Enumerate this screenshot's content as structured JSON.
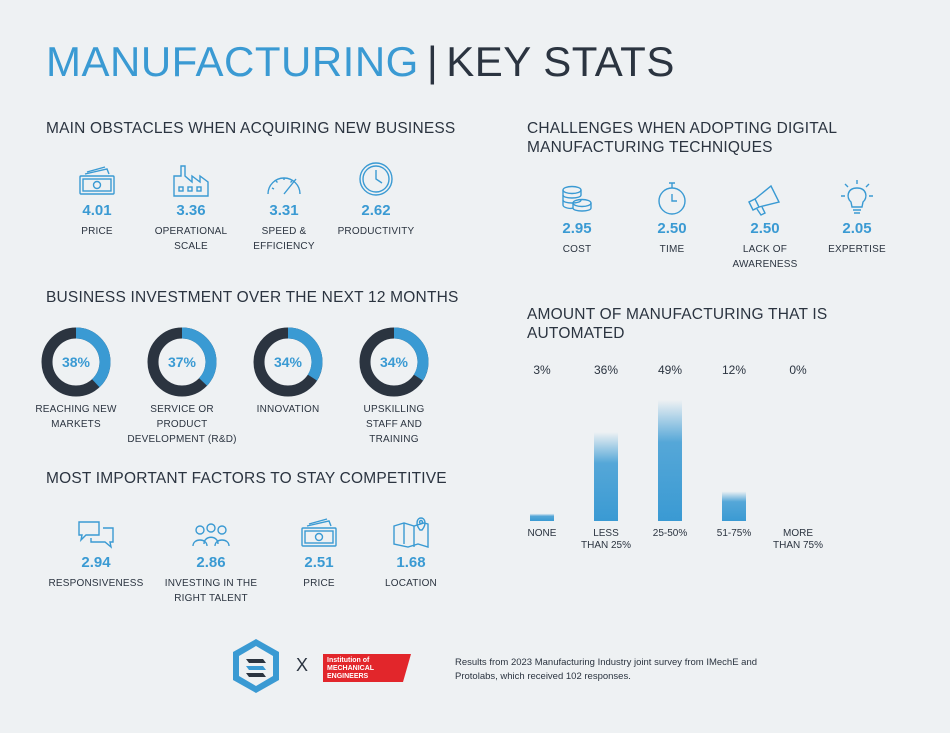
{
  "title": {
    "accent": "MANUFACTURING",
    "separator": "|",
    "rest": "KEY STATS"
  },
  "obstacles": {
    "heading": "MAIN OBSTACLES WHEN ACQUIRING NEW BUSINESS",
    "items": [
      {
        "value": "4.01",
        "label": "PRICE",
        "icon": "money-icon"
      },
      {
        "value": "3.36",
        "label": "OPERATIONAL SCALE",
        "icon": "factory-icon"
      },
      {
        "value": "3.31",
        "label": "SPEED & EFFICIENCY",
        "icon": "speedometer-icon"
      },
      {
        "value": "2.62",
        "label": "PRODUCTIVITY",
        "icon": "clock-icon"
      }
    ]
  },
  "investment": {
    "heading": "BUSINESS INVESTMENT OVER THE NEXT 12 MONTHS",
    "items": [
      {
        "percent": 38,
        "value": "38%",
        "label": "REACHING NEW MARKETS"
      },
      {
        "percent": 37,
        "value": "37%",
        "label": "SERVICE OR PRODUCT DEVELOPMENT (R&D)"
      },
      {
        "percent": 34,
        "value": "34%",
        "label": "INNOVATION"
      },
      {
        "percent": 34,
        "value": "34%",
        "label": "UPSKILLING STAFF AND TRAINING"
      }
    ]
  },
  "factors": {
    "heading": "MOST IMPORTANT FACTORS TO STAY COMPETITIVE",
    "items": [
      {
        "value": "2.94",
        "label": "RESPONSIVENESS",
        "icon": "chat-icon"
      },
      {
        "value": "2.86",
        "label": "INVESTING IN THE RIGHT TALENT",
        "icon": "people-icon"
      },
      {
        "value": "2.51",
        "label": "PRICE",
        "icon": "money-icon"
      },
      {
        "value": "1.68",
        "label": "LOCATION",
        "icon": "map-icon"
      }
    ]
  },
  "challenges": {
    "heading": "CHALLENGES WHEN ADOPTING DIGITAL MANUFACTURING TECHNIQUES",
    "items": [
      {
        "value": "2.95",
        "label": "COST",
        "icon": "coins-icon"
      },
      {
        "value": "2.50",
        "label": "TIME",
        "icon": "stopwatch-icon"
      },
      {
        "value": "2.50",
        "label": "LACK OF AWARENESS",
        "icon": "megaphone-icon"
      },
      {
        "value": "2.05",
        "label": "EXPERTISE",
        "icon": "lightbulb-icon"
      }
    ]
  },
  "chart_data": {
    "type": "bar",
    "title": "AMOUNT OF MANUFACTURING THAT IS AUTOMATED",
    "categories": [
      "NONE",
      "LESS THAN 25%",
      "25-50%",
      "51-75%",
      "MORE THAN 75%"
    ],
    "values": [
      3,
      36,
      49,
      12,
      0
    ],
    "value_labels": [
      "3%",
      "36%",
      "49%",
      "12%",
      "0%"
    ],
    "ylim": [
      0,
      49
    ],
    "grid": false,
    "bar_color": "#3a9ad3"
  },
  "footer": {
    "x": "X",
    "imeche_logo": "Institution of MECHANICAL ENGINEERS",
    "note": "Results from 2023 Manufacturing Industry joint survey from IMechE and Protolabs, which received 102 responses."
  },
  "colors": {
    "accent": "#3a9ad3",
    "dark": "#2b3440",
    "background": "#eef1f3",
    "imeche_red": "#e2262b"
  }
}
